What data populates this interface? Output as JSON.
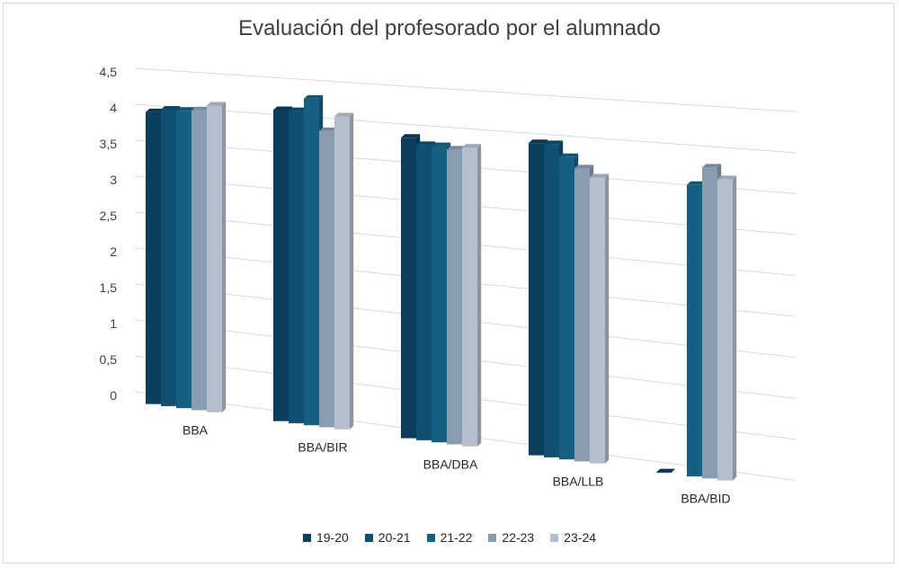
{
  "chart_data": {
    "type": "bar",
    "title": "Evaluación del profesorado por el alumnado",
    "categories": [
      "BBA",
      "BBA/BIR",
      "BBA/DBA",
      "BBA/LLB",
      "BBA/BID"
    ],
    "series": [
      {
        "name": "19-20",
        "color": "#0d3d5c",
        "values": [
          4.05,
          4.2,
          3.95,
          4.0,
          0.0
        ]
      },
      {
        "name": "20-21",
        "color": "#0f4f72",
        "values": [
          4.1,
          4.2,
          3.87,
          4.0,
          null
        ]
      },
      {
        "name": "21-22",
        "color": "#156082",
        "values": [
          4.1,
          4.38,
          3.87,
          3.85,
          3.62
        ]
      },
      {
        "name": "22-23",
        "color": "#8a9cb0",
        "values": [
          4.12,
          3.96,
          3.84,
          3.72,
          3.85
        ]
      },
      {
        "name": "23-24",
        "color": "#b3bfcc",
        "values": [
          4.2,
          4.17,
          3.88,
          3.62,
          3.72
        ]
      }
    ],
    "y_ticks": [
      "0",
      "0,5",
      "1",
      "1,5",
      "2",
      "2,5",
      "3",
      "3,5",
      "4",
      "4,5"
    ],
    "ylim": [
      0,
      4.5
    ],
    "legend_position": "bottom",
    "grid": true
  }
}
